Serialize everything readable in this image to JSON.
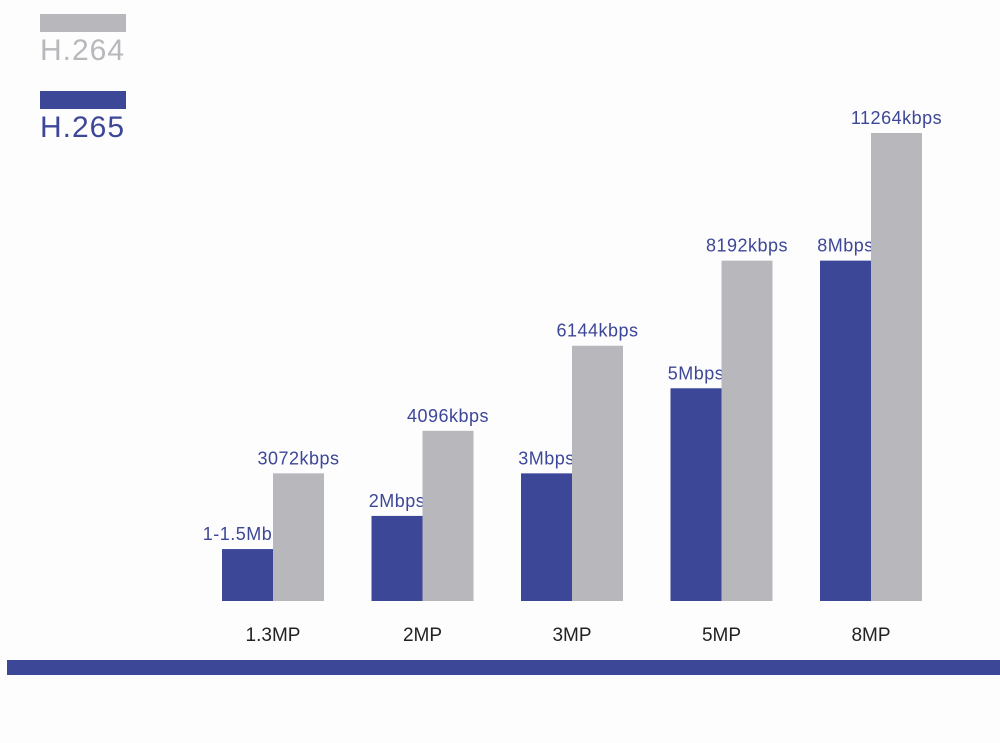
{
  "legend": [
    {
      "label": "H.264",
      "color": "#b8b7bc"
    },
    {
      "label": "H.265",
      "color": "#3d4797"
    }
  ],
  "chart_data": {
    "type": "bar",
    "title": "",
    "xlabel": "",
    "ylabel": "",
    "ylim": [
      0,
      11264
    ],
    "grid": false,
    "legend_position": "top-left",
    "categories": [
      "1.3MP",
      "2MP",
      "3MP",
      "5MP",
      "8MP"
    ],
    "series": [
      {
        "name": "H.265",
        "color": "#3d4797",
        "values": [
          1250,
          2048,
          3072,
          5120,
          8192
        ],
        "labels": [
          "1-1.5Mbps",
          "2Mbps",
          "3Mbps",
          "5Mbps",
          "8Mbps"
        ]
      },
      {
        "name": "H.264",
        "color": "#b8b7bc",
        "values": [
          3072,
          4096,
          6144,
          8192,
          11264
        ],
        "labels": [
          "3072kbps",
          "4096kbps",
          "6144kbps",
          "8192kbps",
          "11264kbps"
        ]
      }
    ]
  }
}
